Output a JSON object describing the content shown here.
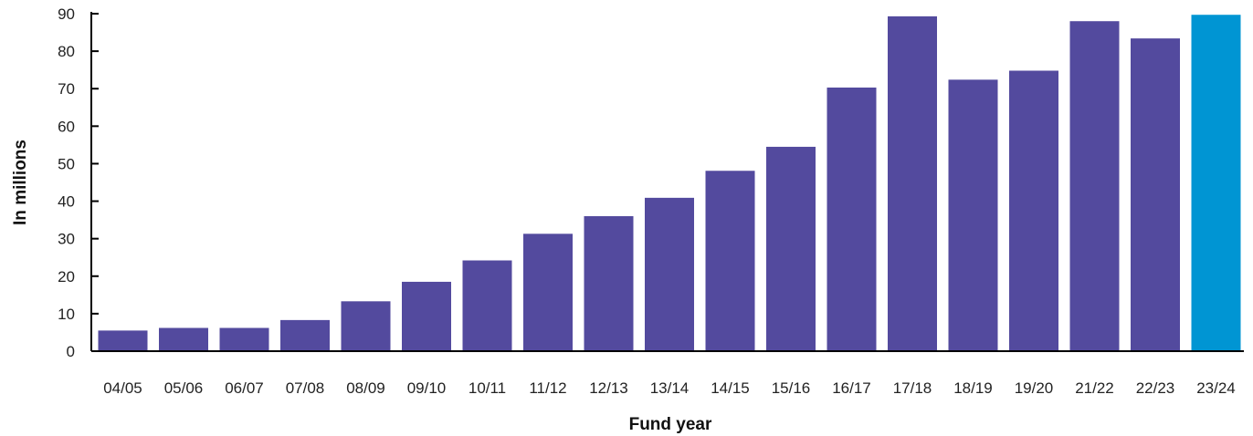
{
  "chart_data": {
    "type": "bar",
    "title": "",
    "xlabel": "Fund year",
    "ylabel": "In millions",
    "categories": [
      "04/05",
      "05/06",
      "06/07",
      "07/08",
      "08/09",
      "09/10",
      "10/11",
      "11/12",
      "12/13",
      "13/14",
      "14/15",
      "15/16",
      "16/17",
      "17/18",
      "18/19",
      "19/20",
      "21/22",
      "22/23",
      "23/24"
    ],
    "values": [
      5.5,
      6.2,
      6.2,
      8.3,
      13.3,
      18.5,
      24.2,
      31.3,
      36.0,
      40.9,
      48.1,
      54.5,
      70.3,
      89.3,
      72.4,
      74.8,
      88.0,
      83.4,
      89.7
    ],
    "ylim": [
      0,
      90
    ],
    "yticks": [
      0,
      10,
      20,
      30,
      40,
      50,
      60,
      70,
      80,
      90
    ],
    "grid": false,
    "legend": "none",
    "colors": {
      "bar": "#534a9e",
      "highlight": "#0095d3",
      "axis": "#000000"
    },
    "highlight_index": 18
  }
}
